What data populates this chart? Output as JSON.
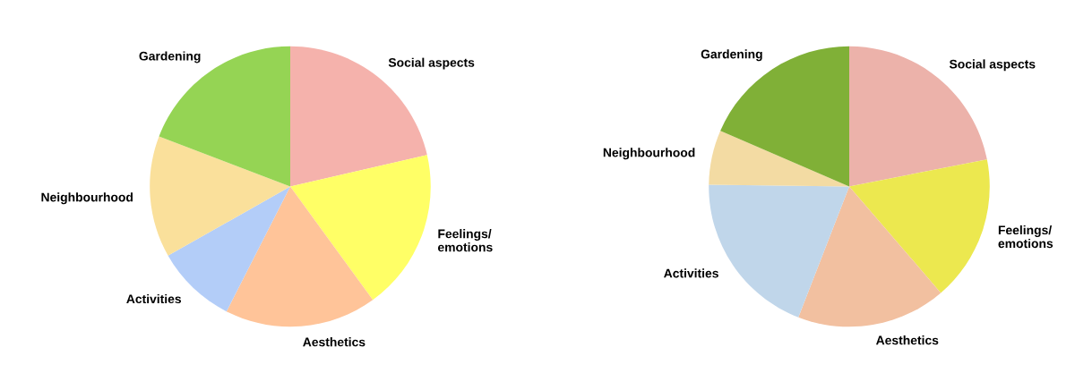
{
  "chart_data": [
    {
      "type": "pie",
      "categories": [
        "Social aspects",
        "Feelings/\nemotions",
        "Aesthetics",
        "Activities",
        "Neighbourhood",
        "Gardening"
      ],
      "values": [
        21.4,
        18.6,
        17.5,
        9.3,
        14.0,
        19.2
      ],
      "colors": [
        "#f5b2ac",
        "#ffff66",
        "#ffc499",
        "#b3cdf8",
        "#fae09b",
        "#95d454"
      ]
    },
    {
      "type": "pie",
      "categories": [
        "Social aspects",
        "Feelings/\nemotions",
        "Aesthetics",
        "Activities",
        "Neighbourhood",
        "Gardening"
      ],
      "values": [
        21.9,
        16.8,
        17.2,
        19.3,
        6.3,
        18.5
      ],
      "colors": [
        "#ecb2aa",
        "#ece84f",
        "#f2c0a0",
        "#c0d6ea",
        "#f3dba3",
        "#80b037"
      ]
    }
  ]
}
